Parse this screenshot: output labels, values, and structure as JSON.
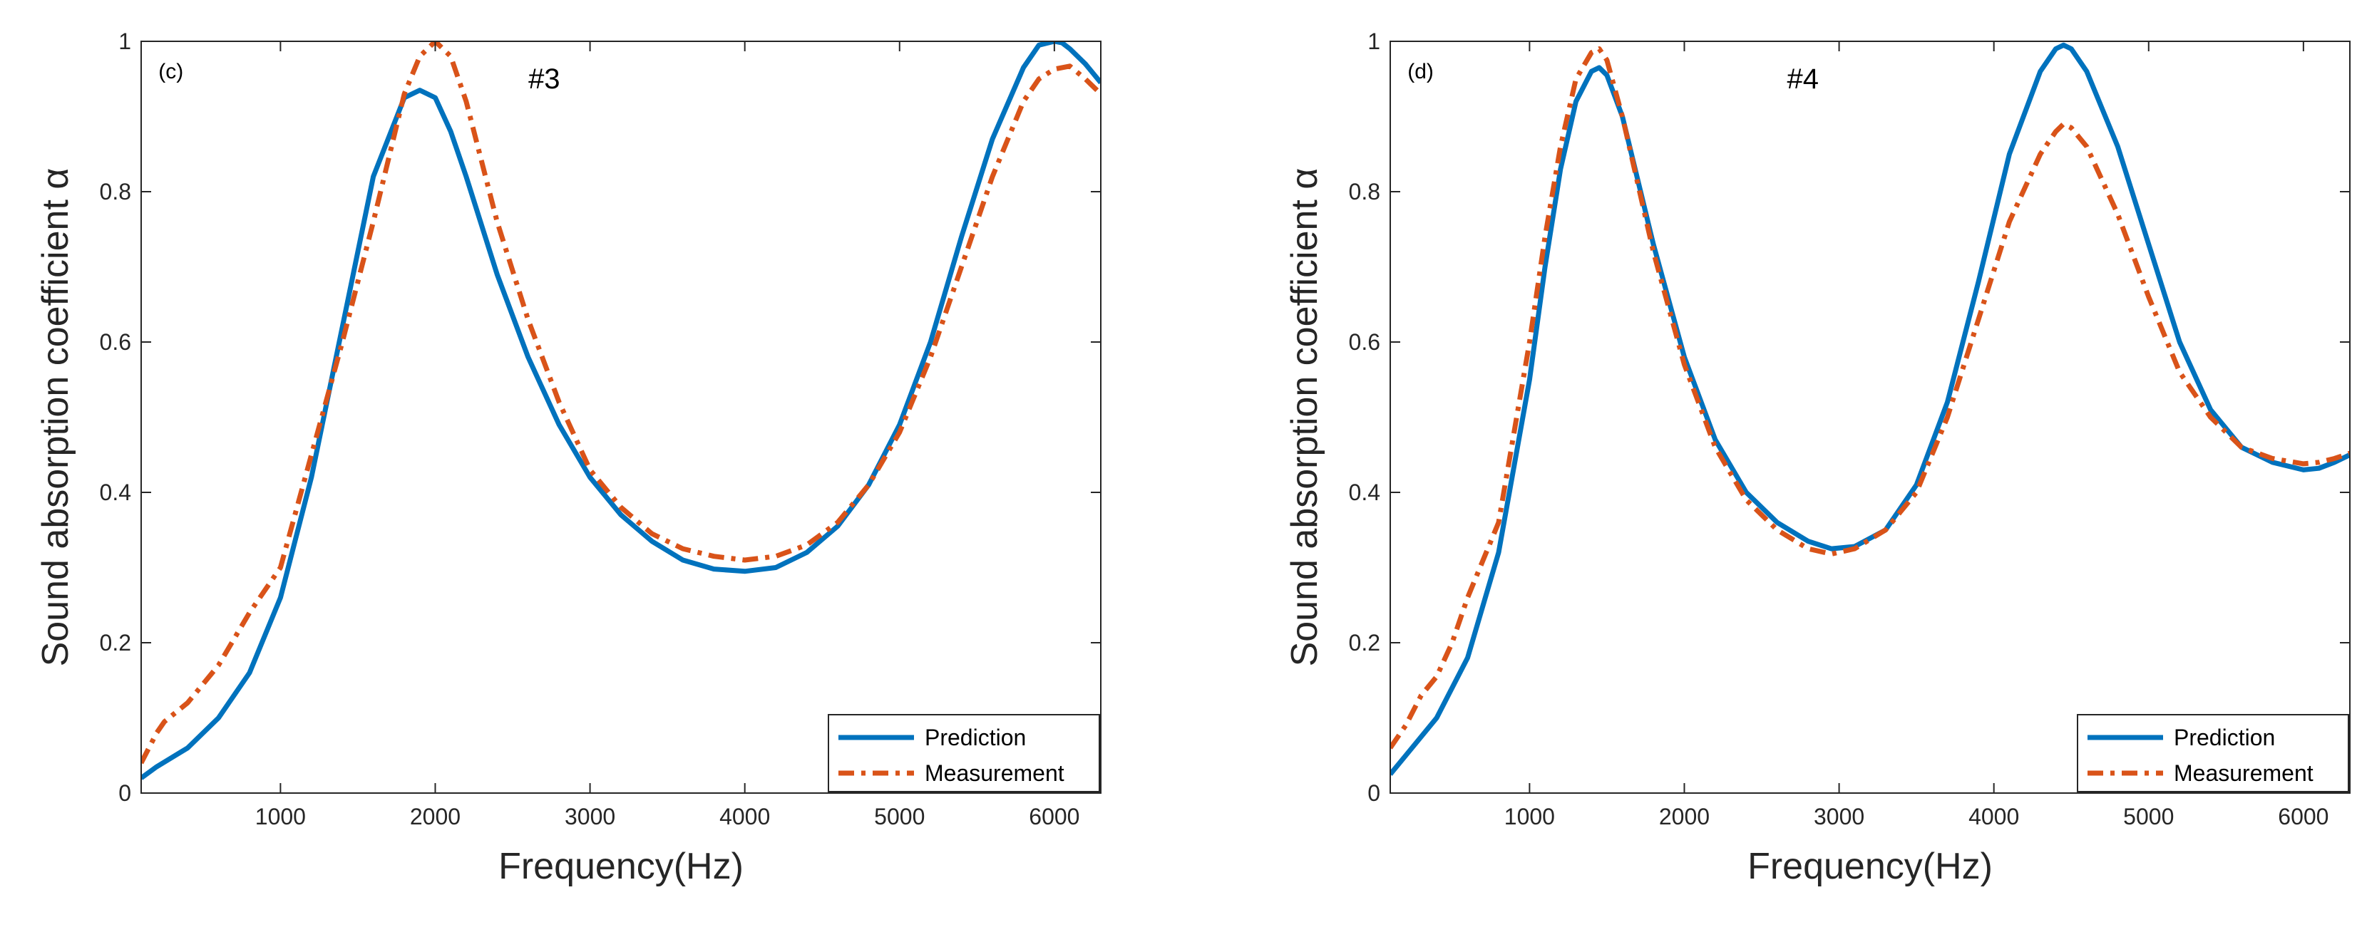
{
  "chart_data": [
    {
      "type": "line",
      "panel_label": "(c)",
      "title": "#3",
      "xlabel": "Frequency(Hz)",
      "ylabel": "Sound absorption coefficient α",
      "xlim": [
        100,
        6300
      ],
      "ylim": [
        0,
        1
      ],
      "xticks": [
        1000,
        2000,
        3000,
        4000,
        5000,
        6000
      ],
      "yticks": [
        0,
        0.2,
        0.4,
        0.6,
        0.8,
        1
      ],
      "ytick_labels": [
        "0",
        "0.2",
        "0.4",
        "0.6",
        "0.8",
        "1"
      ],
      "legend_position": "bottom-right",
      "series": [
        {
          "name": "Prediction",
          "color": "#0072BD",
          "style": "solid",
          "x": [
            100,
            200,
            400,
            600,
            800,
            1000,
            1200,
            1400,
            1600,
            1800,
            1900,
            2000,
            2100,
            2200,
            2400,
            2600,
            2800,
            3000,
            3200,
            3400,
            3600,
            3800,
            4000,
            4200,
            4400,
            4600,
            4800,
            5000,
            5200,
            5400,
            5600,
            5800,
            5900,
            6000,
            6050,
            6100,
            6200,
            6300
          ],
          "y": [
            0.02,
            0.035,
            0.06,
            0.1,
            0.16,
            0.26,
            0.42,
            0.62,
            0.82,
            0.925,
            0.935,
            0.925,
            0.88,
            0.82,
            0.69,
            0.58,
            0.49,
            0.42,
            0.37,
            0.335,
            0.31,
            0.298,
            0.295,
            0.3,
            0.32,
            0.355,
            0.41,
            0.49,
            0.6,
            0.74,
            0.87,
            0.965,
            0.995,
            1.0,
            0.998,
            0.99,
            0.97,
            0.945
          ]
        },
        {
          "name": "Measurement",
          "color": "#D95319",
          "style": "dashdot",
          "x": [
            100,
            200,
            250,
            400,
            600,
            800,
            1000,
            1200,
            1400,
            1600,
            1800,
            1900,
            2000,
            2100,
            2200,
            2400,
            2600,
            2800,
            3000,
            3200,
            3400,
            3600,
            3800,
            4000,
            4200,
            4400,
            4600,
            4800,
            5000,
            5200,
            5400,
            5600,
            5800,
            5900,
            6000,
            6100,
            6200,
            6300
          ],
          "y": [
            0.04,
            0.08,
            0.095,
            0.12,
            0.17,
            0.24,
            0.3,
            0.45,
            0.6,
            0.76,
            0.93,
            0.98,
            1.0,
            0.98,
            0.92,
            0.76,
            0.63,
            0.52,
            0.43,
            0.38,
            0.345,
            0.325,
            0.315,
            0.31,
            0.315,
            0.33,
            0.36,
            0.41,
            0.48,
            0.58,
            0.7,
            0.82,
            0.92,
            0.95,
            0.963,
            0.967,
            0.95,
            0.93
          ]
        }
      ]
    },
    {
      "type": "line",
      "panel_label": "(d)",
      "title": "#4",
      "xlabel": "Frequency(Hz)",
      "ylabel": "Sound absorption coefficient α",
      "xlim": [
        100,
        6300
      ],
      "ylim": [
        0,
        1
      ],
      "xticks": [
        1000,
        2000,
        3000,
        4000,
        5000,
        6000
      ],
      "yticks": [
        0,
        0.2,
        0.4,
        0.6,
        0.8,
        1
      ],
      "ytick_labels": [
        "0",
        "0.2",
        "0.4",
        "0.6",
        "0.8",
        "1"
      ],
      "legend_position": "bottom-right",
      "series": [
        {
          "name": "Prediction",
          "color": "#0072BD",
          "style": "solid",
          "x": [
            100,
            200,
            400,
            600,
            800,
            1000,
            1100,
            1200,
            1300,
            1400,
            1450,
            1500,
            1600,
            1800,
            2000,
            2200,
            2400,
            2600,
            2800,
            2950,
            3100,
            3300,
            3500,
            3700,
            3900,
            4100,
            4300,
            4400,
            4450,
            4500,
            4600,
            4800,
            5000,
            5200,
            5400,
            5600,
            5800,
            6000,
            6100,
            6200,
            6300
          ],
          "y": [
            0.025,
            0.05,
            0.1,
            0.18,
            0.32,
            0.55,
            0.7,
            0.83,
            0.92,
            0.96,
            0.965,
            0.955,
            0.9,
            0.73,
            0.58,
            0.47,
            0.4,
            0.36,
            0.335,
            0.325,
            0.328,
            0.35,
            0.41,
            0.52,
            0.68,
            0.85,
            0.96,
            0.99,
            0.995,
            0.99,
            0.96,
            0.86,
            0.73,
            0.6,
            0.51,
            0.46,
            0.44,
            0.43,
            0.432,
            0.44,
            0.45
          ]
        },
        {
          "name": "Measurement",
          "color": "#D95319",
          "style": "dashdot",
          "x": [
            100,
            200,
            300,
            400,
            500,
            600,
            800,
            1000,
            1100,
            1200,
            1300,
            1400,
            1450,
            1500,
            1600,
            1800,
            2000,
            2200,
            2400,
            2600,
            2800,
            2950,
            3100,
            3300,
            3500,
            3700,
            3900,
            4100,
            4300,
            4400,
            4450,
            4500,
            4600,
            4800,
            5000,
            5200,
            5400,
            5600,
            5800,
            6000,
            6100,
            6200,
            6300
          ],
          "y": [
            0.06,
            0.09,
            0.13,
            0.155,
            0.2,
            0.26,
            0.36,
            0.6,
            0.74,
            0.86,
            0.95,
            0.985,
            0.99,
            0.975,
            0.9,
            0.72,
            0.57,
            0.46,
            0.39,
            0.35,
            0.325,
            0.318,
            0.325,
            0.35,
            0.4,
            0.5,
            0.63,
            0.76,
            0.85,
            0.88,
            0.89,
            0.885,
            0.86,
            0.77,
            0.66,
            0.56,
            0.5,
            0.46,
            0.445,
            0.438,
            0.44,
            0.445,
            0.452
          ]
        }
      ]
    }
  ]
}
